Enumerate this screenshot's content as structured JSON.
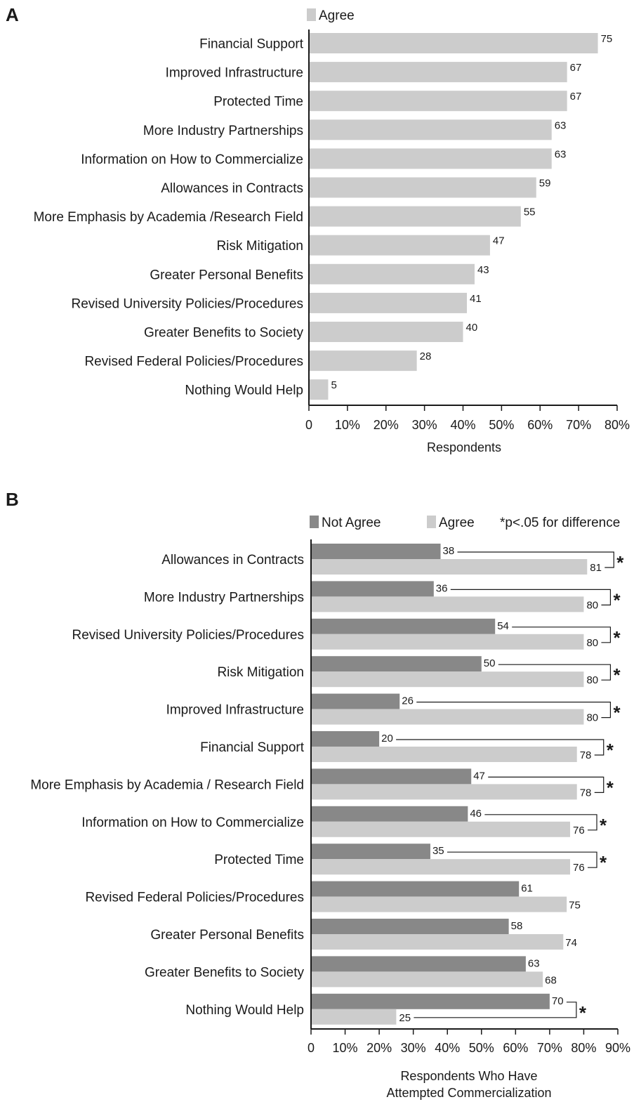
{
  "chart_data": [
    {
      "panel": "A",
      "type": "bar",
      "orientation": "horizontal",
      "xlabel": "Respondents",
      "xlim": [
        0,
        80
      ],
      "xticks": [
        "0",
        "10%",
        "20%",
        "30%",
        "40%",
        "50%",
        "60%",
        "70%",
        "80%"
      ],
      "legend": [
        {
          "name": "Agree",
          "color": "#cccccc"
        }
      ],
      "categories": [
        "Financial Support",
        "Improved Infrastructure",
        "Protected Time",
        "More Industry Partnerships",
        "Information on How to Commercialize",
        "Allowances in Contracts",
        "More Emphasis by Academia /Research Field",
        "Risk Mitigation",
        "Greater Personal Benefits",
        "Revised University Policies/Procedures",
        "Greater Benefits to Society",
        "Revised Federal Policies/Procedures",
        "Nothing Would Help"
      ],
      "series": [
        {
          "name": "Agree",
          "color": "#cccccc",
          "values": [
            75,
            67,
            67,
            63,
            63,
            59,
            55,
            47,
            43,
            41,
            40,
            28,
            5
          ]
        }
      ]
    },
    {
      "panel": "B",
      "type": "bar",
      "orientation": "horizontal",
      "xlabel": [
        "Respondents Who Have",
        "Attempted Commercialization"
      ],
      "xlim": [
        0,
        90
      ],
      "xticks": [
        "0",
        "10%",
        "20%",
        "30%",
        "40%",
        "50%",
        "60%",
        "70%",
        "80%",
        "90%"
      ],
      "legend": [
        {
          "name": "Not Agree",
          "color": "#888888"
        },
        {
          "name": "Agree",
          "color": "#cccccc"
        }
      ],
      "note": "*p<.05 for difference",
      "categories": [
        "Allowances in Contracts",
        "More Industry Partnerships",
        "Revised University Policies/Procedures",
        "Risk Mitigation",
        "Improved Infrastructure",
        "Financial Support",
        "More Emphasis by Academia / Research Field",
        "Information on How to Commercialize",
        "Protected Time",
        "Revised Federal Policies/Procedures",
        "Greater Personal Benefits",
        "Greater Benefits to Society",
        "Nothing Would Help"
      ],
      "series": [
        {
          "name": "Not Agree",
          "color": "#888888",
          "values": [
            38,
            36,
            54,
            50,
            26,
            20,
            47,
            46,
            35,
            61,
            58,
            63,
            70
          ]
        },
        {
          "name": "Agree",
          "color": "#cccccc",
          "values": [
            81,
            80,
            80,
            80,
            80,
            78,
            78,
            76,
            76,
            75,
            74,
            68,
            25
          ]
        }
      ],
      "significant": [
        true,
        true,
        true,
        true,
        true,
        true,
        true,
        true,
        true,
        false,
        false,
        false,
        true
      ],
      "significance_marker": "*"
    }
  ]
}
